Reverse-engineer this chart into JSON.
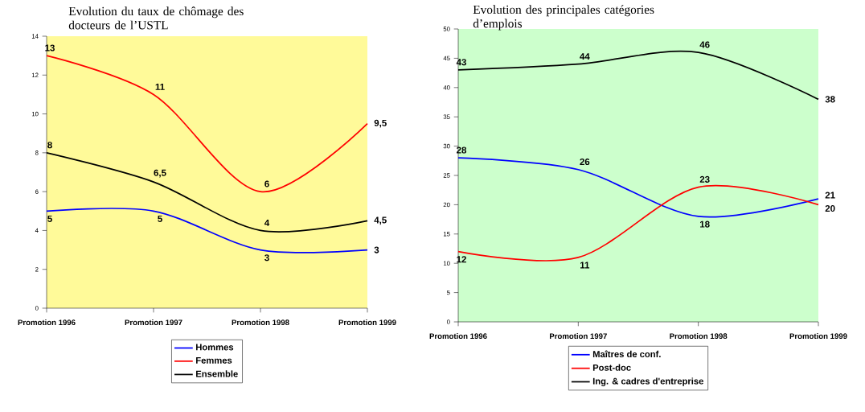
{
  "chart_data": [
    {
      "type": "line",
      "title": "Evolution du taux de chômage des docteurs de l’USTL",
      "categories": [
        "Promotion 1996",
        "Promotion 1997",
        "Promotion 1998",
        "Promotion 1999"
      ],
      "series": [
        {
          "name": "Hommes",
          "color": "#0000ff",
          "values": [
            5,
            5,
            3,
            3
          ],
          "value_labels": [
            "5",
            "5",
            "3",
            "3"
          ]
        },
        {
          "name": "Femmes",
          "color": "#ff0000",
          "values": [
            13,
            11,
            6,
            9.5
          ],
          "value_labels": [
            "13",
            "11",
            "6",
            "9,5"
          ]
        },
        {
          "name": "Ensemble",
          "color": "#000000",
          "values": [
            8,
            6.5,
            4,
            4.5
          ],
          "value_labels": [
            "8",
            "6,5",
            "4",
            "4,5"
          ]
        }
      ],
      "ylim": [
        0,
        14
      ],
      "yticks": [
        0,
        2,
        4,
        6,
        8,
        10,
        12,
        14
      ],
      "legend": "bottom"
    },
    {
      "type": "line",
      "title": "Evolution des principales catégories d’emplois",
      "categories": [
        "Promotion 1996",
        "Promotion 1997",
        "Promotion 1998",
        "Promotion 1999"
      ],
      "series": [
        {
          "name": "Maîtres de conf.",
          "color": "#0000ff",
          "values": [
            28,
            26,
            18,
            21
          ],
          "value_labels": [
            "28",
            "26",
            "18",
            "21"
          ]
        },
        {
          "name": "Post-doc",
          "color": "#ff0000",
          "values": [
            12,
            11,
            23,
            20
          ],
          "value_labels": [
            "12",
            "11",
            "23",
            "20"
          ]
        },
        {
          "name": "Ing. & cadres d'entreprise",
          "color": "#000000",
          "values": [
            43,
            44,
            46,
            38
          ],
          "value_labels": [
            "43",
            "44",
            "46",
            "38"
          ]
        }
      ],
      "ylim": [
        0,
        50
      ],
      "yticks": [
        0,
        5,
        10,
        15,
        20,
        25,
        30,
        35,
        40,
        45,
        50
      ],
      "legend": "bottom"
    }
  ]
}
